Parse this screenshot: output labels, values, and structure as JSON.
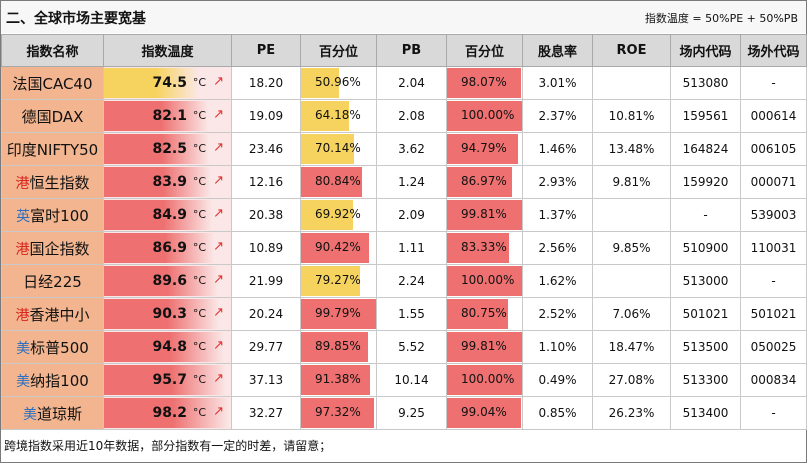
{
  "title": "二、全球市场主要宽基",
  "formula": "指数温度 = 50%PE + 50%PB",
  "headers": [
    "指数名称",
    "指数温度",
    "PE",
    "百分位",
    "PB",
    "百分位",
    "股息率",
    "ROE",
    "场内代码",
    "场外代码"
  ],
  "temp_unit": "°C",
  "temp_arrow": "↗",
  "colors": {
    "header_bg": "#d9d9d9",
    "name_bg": "#f2b58f",
    "hot": "#ee7070",
    "warm": "#f6d35f",
    "temp_track": "#fbe7e7"
  },
  "rows": [
    {
      "market": "",
      "name": "法国CAC40",
      "temp": "74.5",
      "temp_level": 0.745,
      "pe": "18.20",
      "pe_pct": "50.96%",
      "pe_pct_level": 0.5096,
      "pb": "2.04",
      "pb_pct": "98.07%",
      "pb_pct_level": 0.9807,
      "div": "3.01%",
      "roe": "",
      "code_in": "513080",
      "code_out": "-"
    },
    {
      "market": "",
      "name": "德国DAX",
      "temp": "82.1",
      "temp_level": 0.821,
      "pe": "19.09",
      "pe_pct": "64.18%",
      "pe_pct_level": 0.6418,
      "pb": "2.08",
      "pb_pct": "100.00%",
      "pb_pct_level": 1.0,
      "div": "2.37%",
      "roe": "10.81%",
      "code_in": "159561",
      "code_out": "000614"
    },
    {
      "market": "",
      "name": "印度NIFTY50",
      "temp": "82.5",
      "temp_level": 0.825,
      "pe": "23.46",
      "pe_pct": "70.14%",
      "pe_pct_level": 0.7014,
      "pb": "3.62",
      "pb_pct": "94.79%",
      "pb_pct_level": 0.9479,
      "div": "1.46%",
      "roe": "13.48%",
      "code_in": "164824",
      "code_out": "006105"
    },
    {
      "market": "港",
      "name": "恒生指数",
      "temp": "83.9",
      "temp_level": 0.839,
      "pe": "12.16",
      "pe_pct": "80.84%",
      "pe_pct_level": 0.8084,
      "pb": "1.24",
      "pb_pct": "86.97%",
      "pb_pct_level": 0.8697,
      "div": "2.93%",
      "roe": "9.81%",
      "code_in": "159920",
      "code_out": "000071"
    },
    {
      "market": "英",
      "name": "富时100",
      "temp": "84.9",
      "temp_level": 0.849,
      "pe": "20.38",
      "pe_pct": "69.92%",
      "pe_pct_level": 0.6992,
      "pb": "2.09",
      "pb_pct": "99.81%",
      "pb_pct_level": 0.9981,
      "div": "1.37%",
      "roe": "",
      "code_in": "-",
      "code_out": "539003"
    },
    {
      "market": "港",
      "name": "国企指数",
      "temp": "86.9",
      "temp_level": 0.869,
      "pe": "10.89",
      "pe_pct": "90.42%",
      "pe_pct_level": 0.9042,
      "pb": "1.11",
      "pb_pct": "83.33%",
      "pb_pct_level": 0.8333,
      "div": "2.56%",
      "roe": "9.85%",
      "code_in": "510900",
      "code_out": "110031"
    },
    {
      "market": "",
      "name": "日经225",
      "temp": "89.6",
      "temp_level": 0.896,
      "pe": "21.99",
      "pe_pct": "79.27%",
      "pe_pct_level": 0.7927,
      "pb": "2.24",
      "pb_pct": "100.00%",
      "pb_pct_level": 1.0,
      "div": "1.62%",
      "roe": "",
      "code_in": "513000",
      "code_out": "-"
    },
    {
      "market": "港",
      "name": "香港中小",
      "temp": "90.3",
      "temp_level": 0.903,
      "pe": "20.24",
      "pe_pct": "99.79%",
      "pe_pct_level": 0.9979,
      "pb": "1.55",
      "pb_pct": "80.75%",
      "pb_pct_level": 0.8075,
      "div": "2.52%",
      "roe": "7.06%",
      "code_in": "501021",
      "code_out": "501021"
    },
    {
      "market": "美",
      "name": "标普500",
      "temp": "94.8",
      "temp_level": 0.948,
      "pe": "29.77",
      "pe_pct": "89.85%",
      "pe_pct_level": 0.8985,
      "pb": "5.52",
      "pb_pct": "99.81%",
      "pb_pct_level": 0.9981,
      "div": "1.10%",
      "roe": "18.47%",
      "code_in": "513500",
      "code_out": "050025"
    },
    {
      "market": "美",
      "name": "纳指100",
      "temp": "95.7",
      "temp_level": 0.957,
      "pe": "37.13",
      "pe_pct": "91.38%",
      "pe_pct_level": 0.9138,
      "pb": "10.14",
      "pb_pct": "100.00%",
      "pb_pct_level": 1.0,
      "div": "0.49%",
      "roe": "27.08%",
      "code_in": "513300",
      "code_out": "000834"
    },
    {
      "market": "美",
      "name": "道琼斯",
      "temp": "98.2",
      "temp_level": 0.982,
      "pe": "32.27",
      "pe_pct": "97.32%",
      "pe_pct_level": 0.9732,
      "pb": "9.25",
      "pb_pct": "99.04%",
      "pb_pct_level": 0.9904,
      "div": "0.85%",
      "roe": "26.23%",
      "code_in": "513400",
      "code_out": "-"
    }
  ],
  "footer": "跨境指数采用近10年数据，部分指数有一定的时差，请留意；"
}
